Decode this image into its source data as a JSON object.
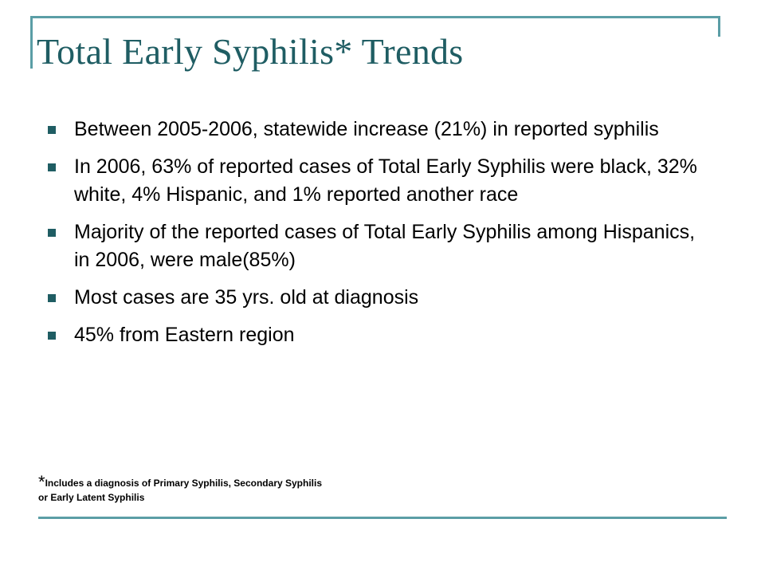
{
  "slide": {
    "title": "Total Early Syphilis* Trends",
    "bullets": [
      "Between 2005-2006, statewide increase (21%) in reported syphilis",
      "In 2006, 63% of reported cases of Total Early Syphilis were black, 32% white, 4% Hispanic, and 1% reported another race",
      "Majority of the reported cases of Total Early Syphilis among Hispanics, in 2006, were male(85%)",
      "Most cases are 35 yrs. old at diagnosis",
      "45% from Eastern region"
    ],
    "footnote": {
      "marker": "*",
      "line1": "Includes a diagnosis of Primary Syphilis, Secondary Syphilis",
      "line2": "or Early Latent Syphilis"
    },
    "colors": {
      "accent": "#5b9ea6",
      "title": "#1f5d63",
      "text": "#000000"
    }
  }
}
